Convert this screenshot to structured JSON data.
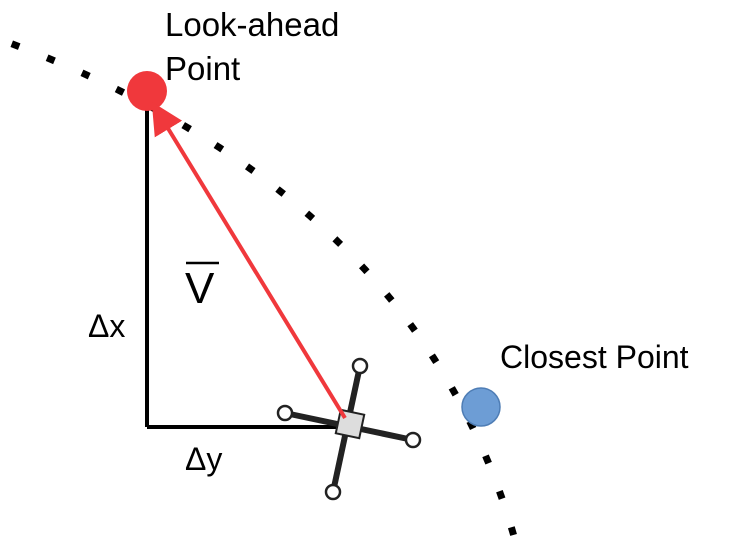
{
  "labels": {
    "look_ahead": [
      "Look-ahead",
      "Point"
    ],
    "closest": "Closest Point",
    "delta_x": "Δx",
    "delta_y": "Δy",
    "vector": "V"
  }
}
